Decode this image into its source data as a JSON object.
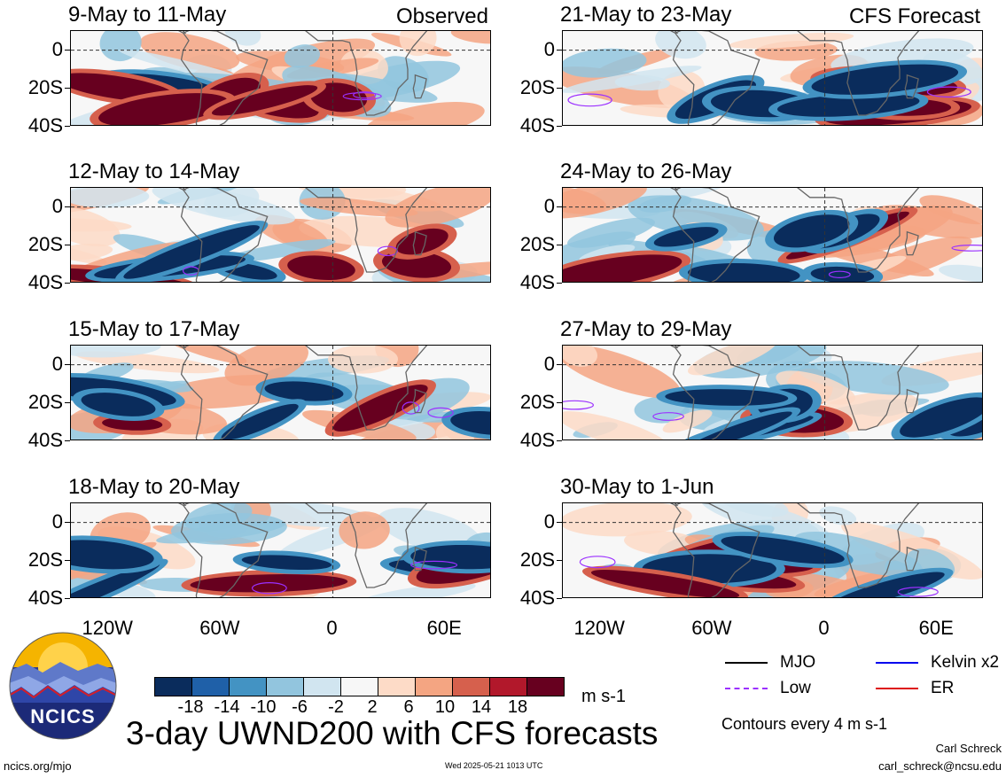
{
  "panels": [
    {
      "title": "9-May to 11-May",
      "tag": "Observed",
      "seed": 1
    },
    {
      "title": "12-May to 14-May",
      "tag": "",
      "seed": 2
    },
    {
      "title": "15-May to 17-May",
      "tag": "",
      "seed": 3
    },
    {
      "title": "18-May to 20-May",
      "tag": "",
      "seed": 4
    },
    {
      "title": "21-May to 23-May",
      "tag": "CFS Forecast",
      "seed": 5
    },
    {
      "title": "24-May to 26-May",
      "tag": "",
      "seed": 6
    },
    {
      "title": "27-May to 29-May",
      "tag": "",
      "seed": 7
    },
    {
      "title": "30-May to 1-Jun",
      "tag": "",
      "seed": 8
    }
  ],
  "lat_labels": [
    "0",
    "20S",
    "40S"
  ],
  "lon_labels": [
    "120W",
    "60W",
    "0",
    "60E"
  ],
  "colorbar": {
    "colors": [
      "#0a2c5c",
      "#1f60a8",
      "#4393c3",
      "#92c5de",
      "#d1e5f0",
      "#f7f7f7",
      "#fddbc7",
      "#f4a582",
      "#d6604d",
      "#b2182b",
      "#67001f"
    ],
    "labels": [
      "-18",
      "-14",
      "-10",
      "-6",
      "-2",
      "2",
      "6",
      "10",
      "14",
      "18"
    ],
    "units": "m s-1"
  },
  "legend": [
    {
      "label": "MJO",
      "color": "#000000"
    },
    {
      "label": "Kelvin x2",
      "color": "#0000ee"
    },
    {
      "label": "Low",
      "color": "#9b30ff"
    },
    {
      "label": "ER",
      "color": "#dd1111"
    }
  ],
  "contour_note": "Contours every 4 m s-1",
  "main_title": "3-day UWND200 with CFS forecasts",
  "logo_text": "NCICS",
  "url": "ncics.org/mjo",
  "timestamp": "Wed 2025-05-21 1013 UTC",
  "author": "Carl Schreck",
  "email": "carl_schreck@ncsu.edu"
}
